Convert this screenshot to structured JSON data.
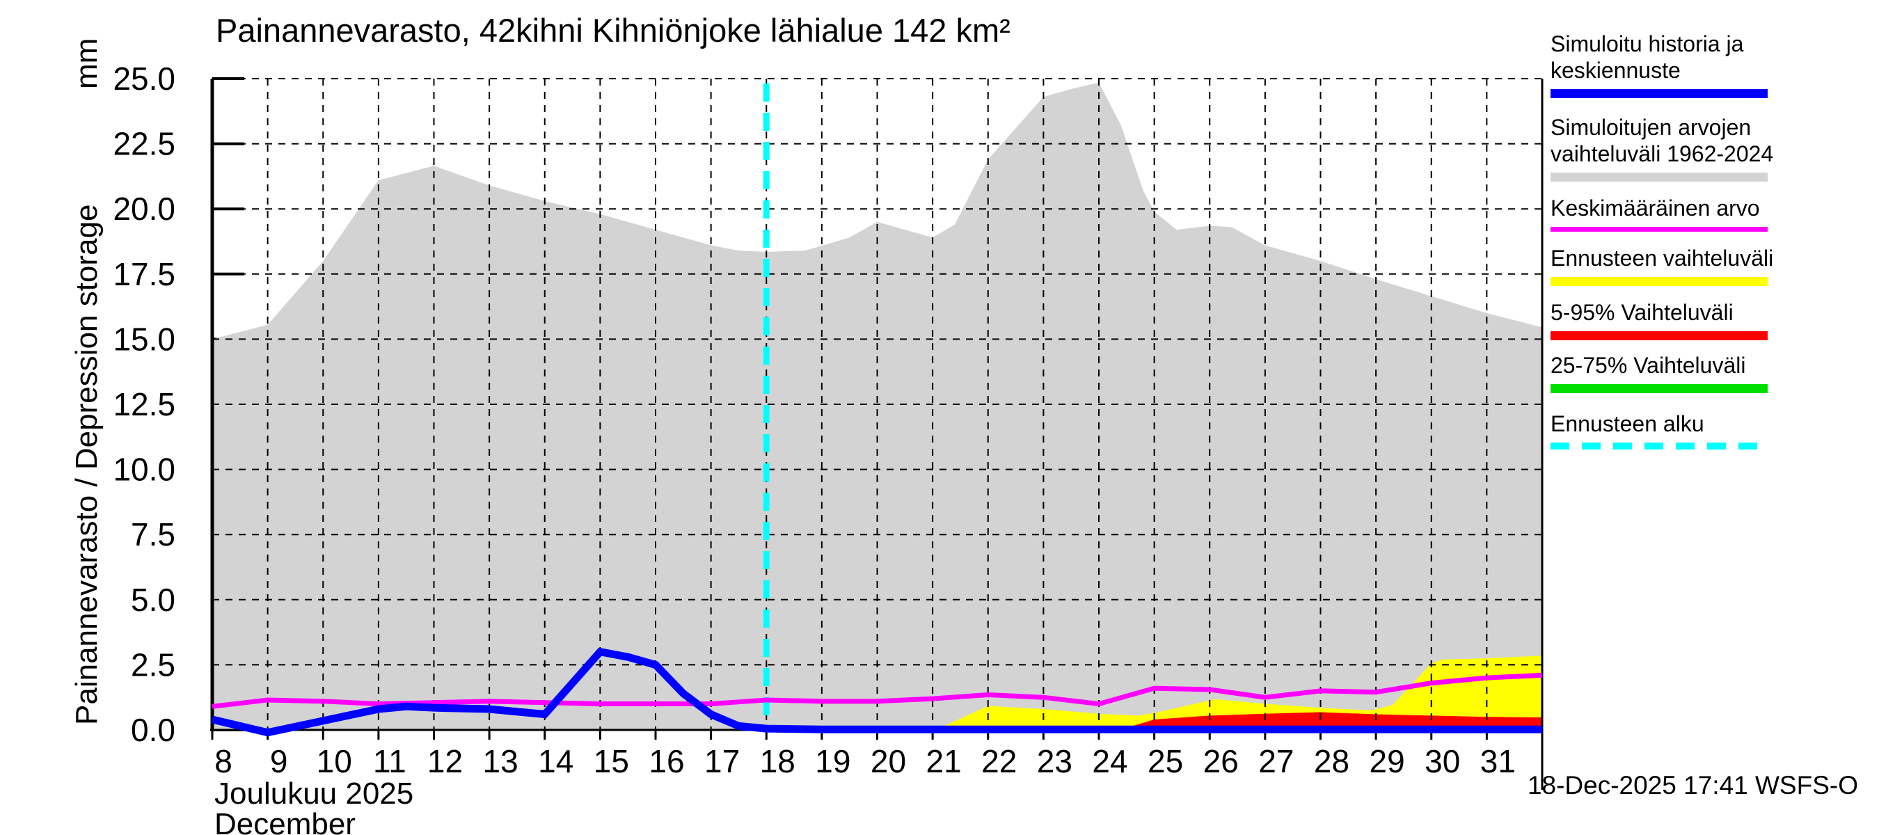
{
  "title": "Painannevarasto, 42kihni Kihniönjoke lähialue 142 km²",
  "y_axis": {
    "unit": "mm",
    "label": "Painannevarasto / Depression storage"
  },
  "x_axis": {
    "month_fi": "Joulukuu 2025",
    "month_en": "December"
  },
  "footer": {
    "timestamp": "18-Dec-2025 17:41 WSFS-O"
  },
  "legend": {
    "items": [
      {
        "id": "simulated-history",
        "lines": [
          "Simuloitu historia ja",
          "keskiennuste"
        ],
        "color": "#0000FF",
        "height": 13,
        "dashed": false
      },
      {
        "id": "simulated-range",
        "lines": [
          "Simuloitujen arvojen",
          "vaihteluväli 1962-2024"
        ],
        "color": "#D3D3D3",
        "height": 13,
        "dashed": false
      },
      {
        "id": "mean-value",
        "lines": [
          "Keskimääräinen arvo"
        ],
        "color": "#FF00FF",
        "height": 7,
        "dashed": false
      },
      {
        "id": "forecast-range",
        "lines": [
          "Ennusteen vaihteluväli"
        ],
        "color": "#FFFF00",
        "height": 13,
        "dashed": false
      },
      {
        "id": "range-5-95",
        "lines": [
          "5-95% Vaihteluväli"
        ],
        "color": "#FF0000",
        "height": 13,
        "dashed": false
      },
      {
        "id": "range-25-75",
        "lines": [
          "25-75% Vaihteluväli"
        ],
        "color": "#00DF00",
        "height": 13,
        "dashed": false
      },
      {
        "id": "forecast-start",
        "lines": [
          "Ennusteen alku"
        ],
        "color": "#00FFFF",
        "height": 10,
        "dashed": true
      }
    ]
  },
  "chart_data": {
    "type": "line",
    "title": "Painannevarasto, 42kihni Kihniönjoke lähialue 142 km²",
    "xlabel": "Joulukuu 2025 / December",
    "ylabel": "Painannevarasto / Depression storage (mm)",
    "xlim": [
      8,
      32
    ],
    "ylim": [
      0,
      25
    ],
    "grid": true,
    "legend_position": "right",
    "forecast_start_x": 18,
    "forecast_start_color": "#00FFFF",
    "x_ticks": [
      8,
      9,
      10,
      11,
      12,
      13,
      14,
      15,
      16,
      17,
      18,
      19,
      20,
      21,
      22,
      23,
      24,
      25,
      26,
      27,
      28,
      29,
      30,
      31
    ],
    "y_ticks": [
      {
        "value": 0,
        "label": "0.0"
      },
      {
        "value": 2.5,
        "label": "2.5"
      },
      {
        "value": 5,
        "label": "5.0"
      },
      {
        "value": 7.5,
        "label": "7.5"
      },
      {
        "value": 10,
        "label": "10.0"
      },
      {
        "value": 12.5,
        "label": "12.5"
      },
      {
        "value": 15,
        "label": "15.0"
      },
      {
        "value": 17.5,
        "label": "17.5"
      },
      {
        "value": 20,
        "label": "20.0"
      },
      {
        "value": 22.5,
        "label": "22.5"
      },
      {
        "value": 25,
        "label": "25.0"
      }
    ],
    "bands": [
      {
        "id": "sim-range",
        "name": "Simuloitujen arvojen vaihteluväli 1962-2024",
        "color": "#D3D3D3",
        "bottom": 0,
        "x": [
          8,
          9,
          10,
          11,
          12,
          13,
          14,
          15,
          16,
          17,
          17.5,
          18,
          18.7,
          19.5,
          20,
          21,
          21.4,
          22,
          22.5,
          23,
          23.5,
          24,
          24.4,
          24.8,
          25,
          25.4,
          26,
          26.4,
          27,
          28,
          29,
          30,
          31,
          32
        ],
        "top": [
          15.0,
          15.55,
          18.0,
          21.1,
          21.65,
          20.9,
          20.3,
          19.8,
          19.2,
          18.6,
          18.4,
          18.35,
          18.4,
          18.9,
          19.5,
          18.9,
          19.4,
          21.9,
          23.1,
          24.3,
          24.6,
          24.85,
          23.2,
          20.7,
          19.9,
          19.2,
          19.35,
          19.3,
          18.6,
          18.0,
          17.3,
          16.65,
          16.0,
          15.45
        ]
      },
      {
        "id": "forecast-range",
        "name": "Ennusteen vaihteluväli",
        "color": "#FFFF00",
        "bottom": 0,
        "x": [
          18,
          21.1,
          22,
          23,
          24,
          24.7,
          25,
          26.1,
          27,
          28,
          28.9,
          29.3,
          30,
          30.2,
          31,
          32
        ],
        "top": [
          0.02,
          0.05,
          0.92,
          0.8,
          0.62,
          0.55,
          0.65,
          1.18,
          1.0,
          0.85,
          0.75,
          0.95,
          2.55,
          2.7,
          2.75,
          2.85
        ]
      },
      {
        "id": "range-5-95",
        "name": "5-95% Vaihteluväli",
        "color": "#FF0000",
        "bottom": 0,
        "x": [
          24.4,
          25,
          26,
          27,
          28,
          29,
          30,
          31,
          32
        ],
        "top": [
          0.02,
          0.4,
          0.55,
          0.62,
          0.68,
          0.6,
          0.55,
          0.5,
          0.48
        ]
      },
      {
        "id": "range-25-75",
        "name": "25-75% Vaihteluväli",
        "color": "#00DF00",
        "bottom": 0,
        "x": [
          24.4,
          25,
          32
        ],
        "top": [
          0.02,
          0.07,
          0.08
        ]
      }
    ],
    "lines": [
      {
        "id": "mean-value",
        "name": "Keskimääräinen arvo",
        "color": "#FF00FF",
        "width": 7,
        "x": [
          8,
          9,
          10,
          11,
          12,
          13,
          14,
          15,
          16,
          17,
          18,
          19,
          20,
          21,
          22,
          23,
          24,
          25,
          26,
          27,
          28,
          29,
          30,
          31,
          32
        ],
        "y": [
          0.9,
          1.15,
          1.1,
          1.0,
          1.05,
          1.1,
          1.05,
          1.0,
          1.0,
          1.0,
          1.15,
          1.1,
          1.1,
          1.2,
          1.35,
          1.25,
          1.0,
          1.6,
          1.55,
          1.25,
          1.5,
          1.45,
          1.8,
          2.0,
          2.1
        ]
      },
      {
        "id": "sim-history",
        "name": "Simuloitu historia ja keskiennuste",
        "color": "#0000FF",
        "width": 11,
        "x": [
          8,
          9,
          10,
          11,
          11.5,
          12,
          13,
          14,
          15,
          15.5,
          16,
          16.5,
          17,
          17.5,
          18,
          19,
          32
        ],
        "y": [
          0.4,
          -0.1,
          0.35,
          0.8,
          0.9,
          0.85,
          0.8,
          0.6,
          3.0,
          2.8,
          2.5,
          1.4,
          0.6,
          0.15,
          0.05,
          0.02,
          0.02
        ]
      }
    ]
  }
}
